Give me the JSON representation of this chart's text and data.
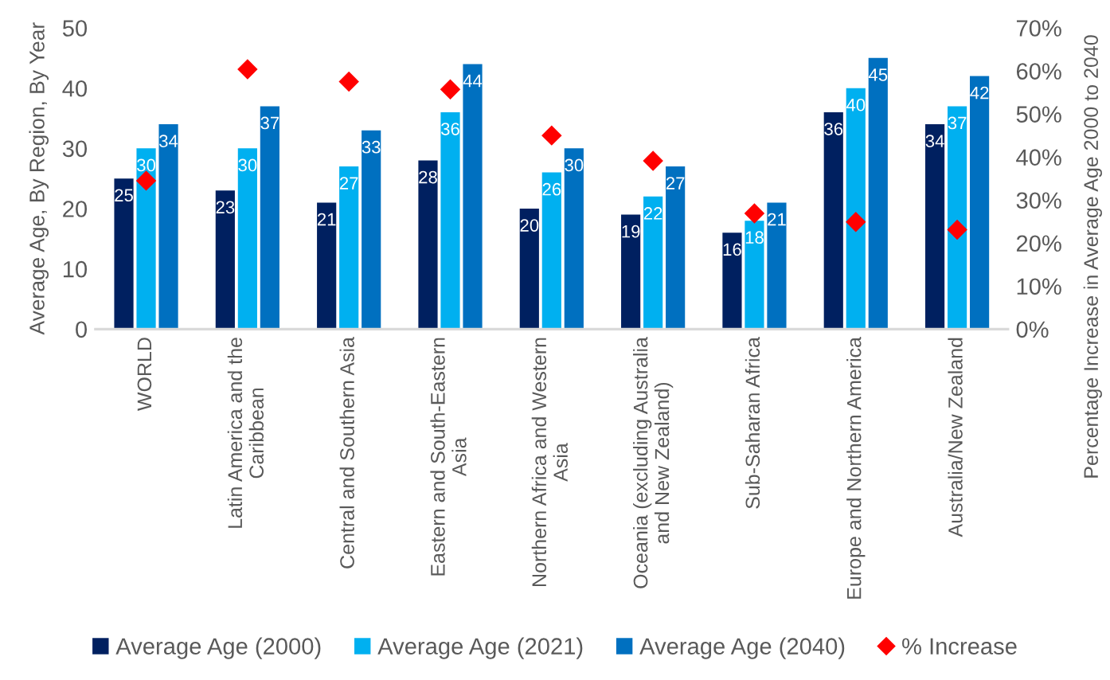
{
  "chart_data": {
    "type": "bar",
    "categories": [
      "WORLD",
      "Latin America and the\nCaribbean",
      "Central and Southern Asia",
      "Eastern and South-Eastern\nAsia",
      "Northern Africa and Western\nAsia",
      "Oceania (excluding Australia\nand New Zealand)",
      "Sub-Saharan Africa",
      "Europe and Northern America",
      "Australia/New Zealand"
    ],
    "series": [
      {
        "name": "Average Age (2000)",
        "color": "#002060",
        "values": [
          25,
          23,
          21,
          28,
          20,
          19,
          16,
          36,
          34
        ],
        "value_labels": [
          "25",
          "23",
          "21",
          "28",
          "20",
          "19",
          "16",
          "36",
          "34"
        ]
      },
      {
        "name": "Average Age (2021)",
        "color": "#00b0f0",
        "values": [
          30,
          30,
          27,
          36,
          26,
          22,
          18,
          40,
          37
        ],
        "value_labels": [
          "30",
          "30",
          "27",
          "36",
          "26",
          "22",
          "18",
          "40",
          "37"
        ]
      },
      {
        "name": "Average Age (2040)",
        "color": "#0070c0",
        "values": [
          34,
          37,
          33,
          44,
          30,
          27,
          21,
          45,
          42
        ],
        "value_labels": [
          "34",
          "37",
          "33",
          "44",
          "30",
          "27",
          "21",
          "45",
          "42"
        ]
      },
      {
        "name": "% Increase",
        "type": "scatter",
        "axis": "y2",
        "color": "#ff0000",
        "marker": "diamond",
        "values": [
          34.5,
          60.4,
          57.5,
          55.7,
          45.0,
          39.1,
          26.9,
          24.9,
          23.1
        ]
      }
    ],
    "ylabel": "Average Age, By Region, By Year",
    "y2label": "Percentage Increase in Average Age 2000 to 2040",
    "ylim": [
      0,
      50
    ],
    "yticks": [
      0,
      10,
      20,
      30,
      40,
      50
    ],
    "y2lim": [
      0,
      70
    ],
    "y2ticks": [
      {
        "value": 0,
        "label": "0%"
      },
      {
        "value": 10,
        "label": "10%"
      },
      {
        "value": 20,
        "label": "20%"
      },
      {
        "value": 30,
        "label": "30%"
      },
      {
        "value": 40,
        "label": "40%"
      },
      {
        "value": 50,
        "label": "50%"
      },
      {
        "value": 60,
        "label": "60%"
      },
      {
        "value": 70,
        "label": "70%"
      }
    ],
    "legend": "bottom"
  }
}
